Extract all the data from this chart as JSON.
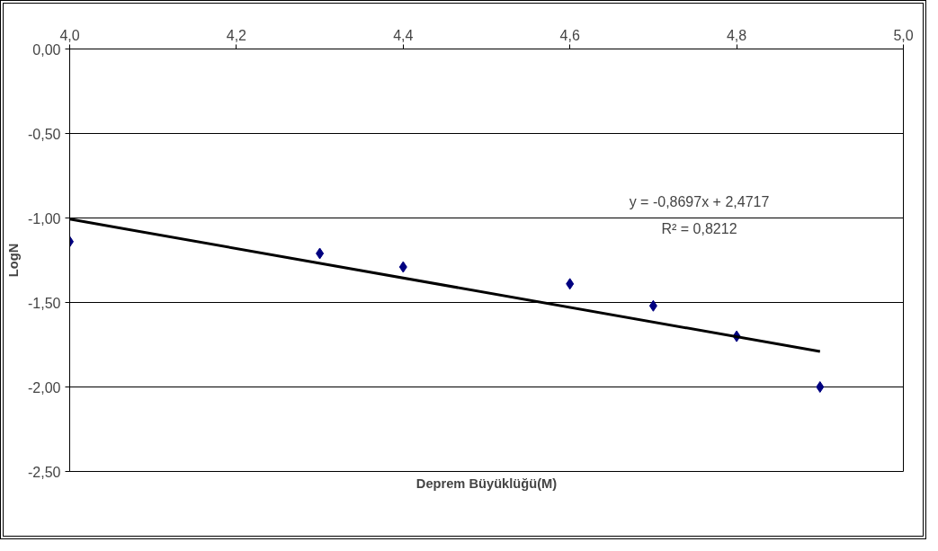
{
  "chart_data": {
    "type": "scatter",
    "xlabel": "Deprem Büyüklüğü(M)",
    "ylabel": "LogN",
    "xlim": [
      4.0,
      5.0
    ],
    "ylim": [
      -2.5,
      0.0
    ],
    "xticks": [
      {
        "value": 4.0,
        "label": "4,0"
      },
      {
        "value": 4.2,
        "label": "4,2"
      },
      {
        "value": 4.4,
        "label": "4,4"
      },
      {
        "value": 4.6,
        "label": "4,6"
      },
      {
        "value": 4.8,
        "label": "4,8"
      },
      {
        "value": 5.0,
        "label": "5,0"
      }
    ],
    "yticks": [
      {
        "value": 0.0,
        "label": "0,00"
      },
      {
        "value": -0.5,
        "label": "-0,50"
      },
      {
        "value": -1.0,
        "label": "-1,00"
      },
      {
        "value": -1.5,
        "label": "-1,50"
      },
      {
        "value": -2.0,
        "label": "-2,00"
      },
      {
        "value": -2.5,
        "label": "-2,50"
      }
    ],
    "grid": "y",
    "series": [
      {
        "marker": "diamond",
        "color": "#000080",
        "x": [
          4.0,
          4.3,
          4.4,
          4.6,
          4.7,
          4.8,
          4.9
        ],
        "values": [
          -1.14,
          -1.21,
          -1.29,
          -1.39,
          -1.52,
          -1.7,
          -2.0
        ]
      },
      {
        "type": "line",
        "color": "#000000",
        "x": [
          4.0,
          4.9
        ],
        "values": [
          -1.007,
          -1.79
        ]
      }
    ],
    "annotations": [
      "y = -0,8697x + 2,4717",
      "R² = 0,8212"
    ]
  }
}
